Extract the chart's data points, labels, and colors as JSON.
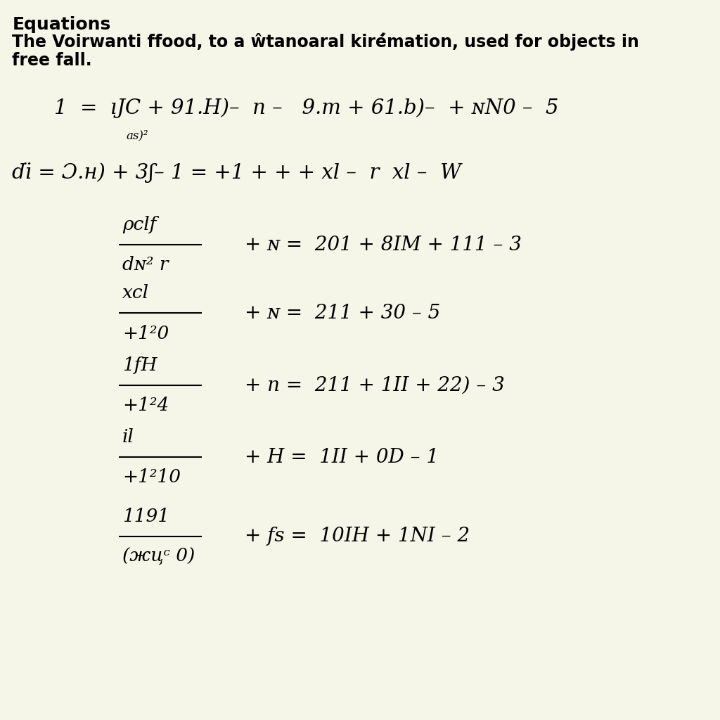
{
  "background_color": "#f5f5e8",
  "title_text": "Equations",
  "subtitle_line1": "The Voirwanti ffood, to a ŵtanoaral kiré́mation, used for objects in",
  "subtitle_line2": "free fall.",
  "eq1_text": "1  =  ıJC + 91.Н)–  n –   9.m + 61.b)–  + ɴN0 –  5",
  "eq1_sub": "as)²",
  "eq2_text": "dı̈ = Ɔ.н) + 3ʃ– 1 = +1 + + + xl –  r  xl –  W",
  "frac1_num": "ρclf",
  "frac1_den": "dɴ² r",
  "frac1_rhs": "+ ɴ =  201 + 8IM + 111 – 3",
  "frac2_num": "xcl",
  "frac2_den": "+1²0",
  "frac2_rhs": "+ ɴ =  211 + 30 – 5",
  "frac3_num": "1fH",
  "frac3_den": "+1²4",
  "frac3_rhs": "+ n =  211 + 1II + 22) – 3",
  "frac4_num": "il",
  "frac4_den": "+1²10",
  "frac4_rhs": "+ H =  1II + 0D – 1",
  "frac5_num": "1191",
  "frac5_den": "(жцᶜ 0)",
  "frac5_rhs": "+ fs =  10IH + 1NI – 2"
}
